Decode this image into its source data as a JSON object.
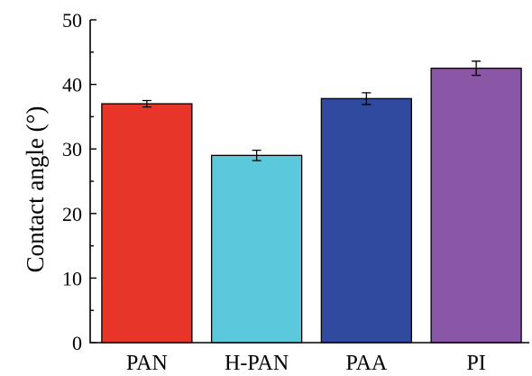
{
  "chart_data": {
    "type": "bar",
    "categories": [
      "PAN",
      "H-PAN",
      "PAA",
      "PI"
    ],
    "values": [
      37.0,
      29.0,
      37.8,
      42.5
    ],
    "errors": [
      0.5,
      0.8,
      0.9,
      1.1
    ],
    "colors": [
      "#e8352a",
      "#5bc8dc",
      "#2f4a9e",
      "#8a56a6"
    ],
    "title": "",
    "xlabel": "",
    "ylabel": "Contact angle (°)",
    "ylim": [
      0,
      50
    ],
    "yticks": [
      "0",
      "10",
      "20",
      "30",
      "40",
      "50"
    ],
    "grid": false
  }
}
